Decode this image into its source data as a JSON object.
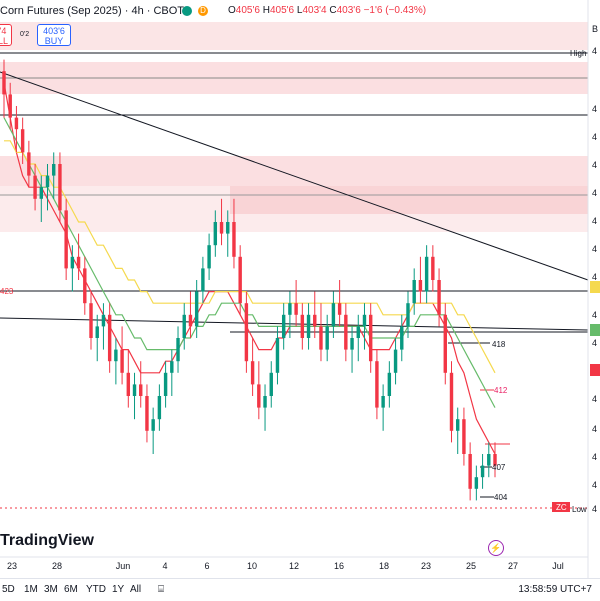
{
  "header": {
    "symbol_title": "Corn Futures (Sep 2025) · 4h · CBOT",
    "ohlc": {
      "o_label": "O",
      "o_value": "405'6",
      "h_label": "H",
      "h_value": "405'6",
      "l_label": "L",
      "l_value": "403'4",
      "c_label": "C",
      "c_value": "403'6",
      "change": "−1'6 (−0.43%)"
    },
    "sell_price": "'4",
    "sell_label": "LL",
    "spread": "0'2",
    "buy_price": "403'6",
    "buy_label": "BUY",
    "badge_d": "D"
  },
  "brand": "TradingView",
  "bottom_bar": {
    "ranges": [
      "5D",
      "1M",
      "3M",
      "6M",
      "YTD",
      "1Y",
      "All"
    ],
    "clock": "13:58:59 UTC+7"
  },
  "colors": {
    "up": "#089981",
    "down": "#f23645",
    "zone": "#f7c5c8",
    "ema_red": "#f23645",
    "ema_green": "#66bb6a",
    "ema_yellow": "#f5d94e"
  },
  "chart_data": {
    "type": "candlestick",
    "title": "Corn Futures (Sep 2025) · 4h · CBOT",
    "x_tick_labels": [
      "23",
      "28",
      "Jun",
      "4",
      "6",
      "10",
      "12",
      "16",
      "18",
      "23",
      "25",
      "27",
      "Jul"
    ],
    "x_tick_fracs": [
      0.02,
      0.095,
      0.205,
      0.275,
      0.345,
      0.42,
      0.49,
      0.565,
      0.64,
      0.71,
      0.785,
      0.855,
      0.93
    ],
    "y_range": [
      400,
      440
    ],
    "line_labels": [
      {
        "text": "High",
        "value": 438.5
      },
      {
        "text": "423",
        "value": 423
      },
      {
        "text": "418",
        "value": 418
      },
      {
        "text": "412",
        "value": 412
      },
      {
        "text": "407",
        "value": 407
      },
      {
        "text": "404",
        "value": 404
      },
      {
        "text": "Low",
        "value": 402
      },
      {
        "text": "ZC",
        "value": 402.5
      }
    ],
    "price_axis_fragments": [
      "4",
      "B"
    ],
    "candles": [
      [
        438,
        439,
        434,
        436
      ],
      [
        436,
        437,
        433,
        434
      ],
      [
        434,
        435,
        431,
        433
      ],
      [
        433,
        434,
        430,
        431
      ],
      [
        431,
        432,
        428,
        429
      ],
      [
        429,
        430,
        426,
        427
      ],
      [
        427,
        429,
        425,
        428
      ],
      [
        428,
        430,
        426,
        429
      ],
      [
        429,
        431,
        427,
        430
      ],
      [
        430,
        431,
        425,
        426
      ],
      [
        426,
        427,
        420,
        421
      ],
      [
        421,
        423,
        419,
        422
      ],
      [
        422,
        424,
        420,
        421
      ],
      [
        421,
        422,
        417,
        418
      ],
      [
        418,
        419,
        414,
        415
      ],
      [
        415,
        417,
        413,
        416
      ],
      [
        416,
        418,
        414,
        417
      ],
      [
        417,
        418,
        412,
        413
      ],
      [
        413,
        415,
        411,
        414
      ],
      [
        414,
        416,
        411,
        412
      ],
      [
        412,
        414,
        409,
        410
      ],
      [
        410,
        412,
        408,
        411
      ],
      [
        411,
        413,
        409,
        410
      ],
      [
        410,
        411,
        406,
        407
      ],
      [
        407,
        409,
        405,
        408
      ],
      [
        408,
        411,
        407,
        410
      ],
      [
        410,
        413,
        409,
        412
      ],
      [
        412,
        414,
        410,
        413
      ],
      [
        413,
        416,
        412,
        415
      ],
      [
        415,
        418,
        414,
        417
      ],
      [
        417,
        419,
        415,
        416
      ],
      [
        416,
        420,
        415,
        419
      ],
      [
        419,
        422,
        418,
        421
      ],
      [
        421,
        424,
        420,
        423
      ],
      [
        423,
        426,
        422,
        425
      ],
      [
        425,
        427,
        423,
        424
      ],
      [
        424,
        426,
        422,
        425
      ],
      [
        425,
        427,
        421,
        422
      ],
      [
        422,
        423,
        417,
        418
      ],
      [
        418,
        419,
        412,
        413
      ],
      [
        413,
        415,
        410,
        411
      ],
      [
        411,
        413,
        408,
        409
      ],
      [
        409,
        411,
        407,
        410
      ],
      [
        410,
        413,
        409,
        412
      ],
      [
        412,
        416,
        411,
        415
      ],
      [
        415,
        418,
        414,
        417
      ],
      [
        417,
        419,
        415,
        418
      ],
      [
        418,
        420,
        416,
        417
      ],
      [
        417,
        418,
        414,
        415
      ],
      [
        415,
        418,
        414,
        417
      ],
      [
        417,
        419,
        415,
        416
      ],
      [
        416,
        418,
        413,
        414
      ],
      [
        414,
        417,
        413,
        416
      ],
      [
        416,
        419,
        415,
        418
      ],
      [
        418,
        420,
        416,
        417
      ],
      [
        417,
        418,
        413,
        414
      ],
      [
        414,
        416,
        412,
        415
      ],
      [
        415,
        417,
        413,
        416
      ],
      [
        416,
        418,
        414,
        417
      ],
      [
        417,
        418,
        412,
        413
      ],
      [
        413,
        414,
        408,
        409
      ],
      [
        409,
        411,
        407,
        410
      ],
      [
        410,
        413,
        409,
        412
      ],
      [
        412,
        415,
        411,
        414
      ],
      [
        414,
        417,
        413,
        416
      ],
      [
        416,
        419,
        415,
        418
      ],
      [
        418,
        421,
        417,
        420
      ],
      [
        420,
        422,
        418,
        419
      ],
      [
        419,
        423,
        418,
        422
      ],
      [
        422,
        423,
        419,
        420
      ],
      [
        420,
        421,
        416,
        417
      ],
      [
        417,
        418,
        411,
        412
      ],
      [
        412,
        413,
        406,
        407
      ],
      [
        407,
        409,
        405,
        408
      ],
      [
        408,
        409,
        404,
        405
      ],
      [
        405,
        406,
        401,
        402
      ],
      [
        402,
        404,
        401,
        403
      ],
      [
        403,
        405,
        402,
        404
      ],
      [
        404,
        406,
        403,
        405
      ],
      [
        405,
        406,
        403,
        404
      ]
    ],
    "ema_series": [
      {
        "color": "#f23645",
        "values": [
          437,
          434,
          431,
          429,
          428,
          428,
          428,
          427,
          426,
          425,
          424,
          422,
          421,
          420,
          419,
          418,
          417,
          416,
          415,
          414,
          414,
          413,
          412,
          412,
          412,
          412,
          413,
          413,
          414,
          415,
          416,
          417,
          418,
          419,
          419,
          419,
          419,
          418,
          417,
          416,
          415,
          414,
          414,
          414,
          415,
          415,
          416,
          416,
          416,
          416,
          416,
          416,
          416,
          416,
          416,
          416,
          416,
          416,
          415,
          414,
          414,
          414,
          414,
          415,
          416,
          417,
          418,
          418,
          418,
          418,
          417,
          416,
          415,
          413,
          412,
          410,
          408,
          407,
          406,
          405
        ]
      },
      {
        "color": "#66bb6a",
        "values": [
          434,
          433,
          432,
          431,
          430,
          429,
          428,
          428,
          427,
          426,
          425,
          424,
          423,
          422,
          421,
          420,
          419,
          418,
          417,
          417,
          416,
          415,
          415,
          414,
          414,
          414,
          414,
          414,
          414,
          415,
          415,
          416,
          416,
          417,
          417,
          418,
          418,
          418,
          418,
          417,
          417,
          416,
          416,
          416,
          416,
          416,
          416,
          416,
          416,
          416,
          416,
          416,
          416,
          416,
          416,
          416,
          416,
          416,
          416,
          415,
          415,
          415,
          415,
          415,
          415,
          416,
          416,
          417,
          417,
          417,
          417,
          417,
          416,
          415,
          414,
          413,
          412,
          411,
          410,
          409
        ]
      },
      {
        "color": "#f5d94e",
        "values": [
          432,
          432,
          431,
          431,
          430,
          430,
          429,
          429,
          428,
          428,
          427,
          426,
          425,
          425,
          424,
          423,
          423,
          422,
          421,
          421,
          420,
          420,
          419,
          419,
          418,
          418,
          418,
          418,
          418,
          418,
          418,
          418,
          418,
          418,
          419,
          419,
          419,
          419,
          419,
          419,
          418,
          418,
          418,
          418,
          418,
          418,
          418,
          418,
          418,
          418,
          418,
          418,
          418,
          418,
          418,
          418,
          418,
          418,
          418,
          418,
          418,
          417,
          417,
          417,
          417,
          417,
          418,
          418,
          418,
          418,
          418,
          418,
          418,
          417,
          417,
          416,
          415,
          414,
          413,
          412
        ]
      }
    ]
  }
}
